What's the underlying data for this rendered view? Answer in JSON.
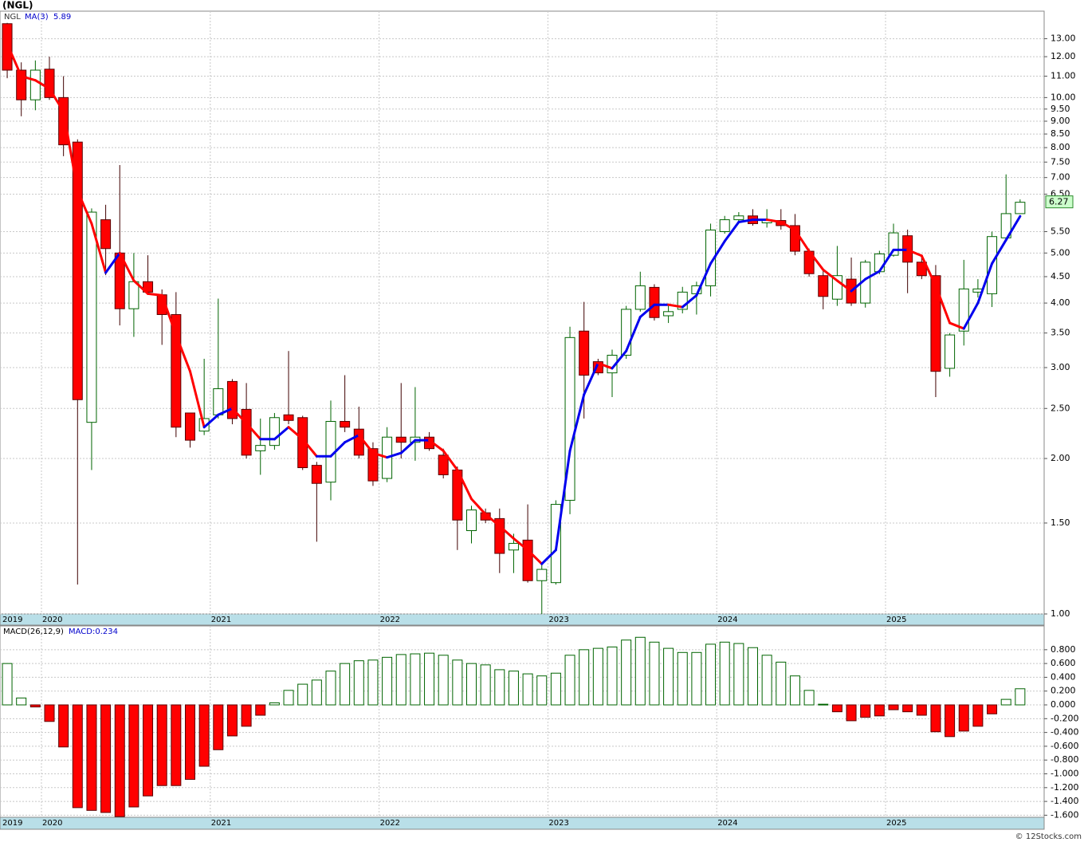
{
  "title": "(NGL)",
  "footer": "© 12Stocks.com",
  "chart_data": [
    {
      "type": "candlestick",
      "symbol": "NGL",
      "log_scale": true,
      "grid": true,
      "up_color": "#006400",
      "down_color": "#ff0000",
      "categories": [
        "2019",
        null,
        null,
        "2020",
        null,
        null,
        null,
        null,
        null,
        null,
        null,
        null,
        null,
        null,
        null,
        "2021",
        null,
        null,
        null,
        null,
        null,
        null,
        null,
        null,
        null,
        null,
        null,
        "2022",
        null,
        null,
        null,
        null,
        null,
        null,
        null,
        null,
        null,
        null,
        null,
        "2023",
        null,
        null,
        null,
        null,
        null,
        null,
        null,
        null,
        null,
        null,
        null,
        "2024",
        null,
        null,
        null,
        null,
        null,
        null,
        null,
        null,
        null,
        null,
        null,
        "2025",
        null,
        null,
        null,
        null,
        null,
        null,
        null,
        null,
        null
      ],
      "open": [
        13.9,
        11.3,
        9.9,
        11.35,
        10.0,
        8.2,
        2.35,
        5.8,
        5.0,
        3.9,
        4.4,
        4.15,
        3.8,
        2.45,
        2.26,
        2.43,
        2.82,
        2.49,
        2.07,
        2.12,
        2.43,
        2.4,
        1.94,
        1.8,
        2.36,
        2.28,
        2.09,
        1.83,
        2.2,
        2.15,
        2.2,
        2.03,
        1.9,
        1.45,
        1.57,
        1.53,
        1.33,
        1.39,
        1.16,
        1.15,
        1.66,
        3.53,
        3.08,
        2.93,
        3.17,
        3.89,
        4.29,
        3.78,
        3.89,
        4.17,
        4.32,
        5.5,
        5.8,
        5.9,
        5.72,
        5.78,
        5.65,
        5.04,
        4.52,
        4.07,
        4.45,
        4.0,
        4.6,
        4.95,
        5.4,
        4.8,
        4.52,
        2.99,
        3.53,
        4.2,
        4.17,
        5.35,
        5.96
      ],
      "high": [
        13.95,
        11.7,
        11.8,
        12.0,
        11.0,
        8.3,
        6.1,
        6.2,
        7.4,
        5.0,
        4.95,
        4.25,
        4.2,
        2.45,
        3.12,
        4.08,
        2.85,
        2.8,
        2.39,
        2.45,
        3.23,
        2.42,
        1.97,
        2.59,
        2.9,
        2.52,
        2.15,
        2.3,
        2.8,
        2.75,
        2.25,
        2.09,
        1.93,
        1.62,
        1.6,
        1.6,
        1.43,
        1.63,
        1.25,
        1.66,
        3.6,
        4.02,
        3.12,
        3.25,
        3.95,
        4.6,
        4.35,
        3.95,
        4.3,
        4.4,
        5.7,
        5.9,
        6.0,
        6.08,
        6.08,
        6.08,
        5.95,
        5.1,
        4.62,
        5.16,
        4.9,
        4.85,
        5.05,
        5.7,
        5.55,
        4.95,
        4.74,
        3.5,
        4.85,
        4.45,
        5.5,
        7.1,
        6.35
      ],
      "low": [
        10.9,
        9.2,
        9.45,
        9.9,
        7.7,
        1.14,
        1.9,
        4.53,
        3.62,
        3.44,
        4.15,
        3.32,
        2.2,
        2.1,
        2.22,
        2.39,
        2.33,
        2.0,
        1.86,
        2.08,
        2.33,
        1.9,
        1.38,
        1.66,
        2.25,
        2.0,
        1.77,
        1.8,
        2.0,
        1.98,
        2.07,
        1.83,
        1.33,
        1.37,
        1.5,
        1.2,
        1.2,
        1.15,
        1.0,
        1.14,
        1.56,
        2.39,
        2.9,
        2.63,
        3.12,
        3.85,
        3.7,
        3.66,
        3.82,
        3.8,
        4.12,
        5.45,
        5.75,
        5.65,
        5.6,
        5.55,
        4.95,
        4.5,
        3.89,
        3.95,
        3.95,
        3.92,
        4.55,
        4.92,
        4.18,
        4.45,
        2.63,
        2.88,
        3.31,
        4.1,
        3.93,
        5.3,
        5.95
      ],
      "close": [
        11.3,
        9.9,
        11.3,
        10.0,
        8.1,
        2.6,
        6.0,
        5.1,
        3.9,
        4.4,
        4.2,
        3.8,
        2.3,
        2.17,
        2.39,
        2.73,
        2.39,
        2.03,
        2.12,
        2.4,
        2.37,
        1.92,
        1.79,
        2.36,
        2.3,
        2.03,
        1.81,
        2.2,
        2.15,
        2.2,
        2.09,
        1.86,
        1.52,
        1.59,
        1.52,
        1.31,
        1.37,
        1.16,
        1.22,
        1.63,
        3.43,
        2.9,
        2.93,
        3.17,
        3.89,
        4.32,
        3.75,
        3.85,
        4.2,
        4.32,
        5.54,
        5.8,
        5.9,
        5.7,
        5.8,
        5.65,
        5.04,
        4.56,
        4.12,
        4.52,
        4.0,
        4.8,
        4.98,
        5.47,
        4.8,
        4.52,
        2.95,
        3.47,
        4.26,
        4.26,
        5.38,
        5.96,
        6.27
      ],
      "series": [
        {
          "name": "MA(3)",
          "up_color": "#0000ee",
          "down_color": "#ff0000",
          "values": [
            12.7,
            11.0,
            10.8,
            10.4,
            9.4,
            6.6,
            5.7,
            4.58,
            5.0,
            4.42,
            4.17,
            4.14,
            3.47,
            2.95,
            2.3,
            2.43,
            2.5,
            2.34,
            2.18,
            2.18,
            2.3,
            2.18,
            2.02,
            2.02,
            2.15,
            2.22,
            2.05,
            2.01,
            2.05,
            2.17,
            2.17,
            2.07,
            1.9,
            1.67,
            1.56,
            1.48,
            1.4,
            1.33,
            1.25,
            1.33,
            2.07,
            2.66,
            3.06,
            2.99,
            3.23,
            3.76,
            3.97,
            3.97,
            3.93,
            4.14,
            4.77,
            5.27,
            5.74,
            5.8,
            5.8,
            5.74,
            5.54,
            5.04,
            4.64,
            4.42,
            4.22,
            4.45,
            4.61,
            5.07,
            5.07,
            4.94,
            4.32,
            3.66,
            3.57,
            4.0,
            4.77,
            5.3,
            5.89
          ]
        }
      ],
      "ylim": [
        1.0,
        14.7
      ],
      "yticks": [
        {
          "value": 1,
          "label": "1.00"
        },
        {
          "value": 1.5,
          "label": "1.50"
        },
        {
          "value": 2,
          "label": "2.00"
        },
        {
          "value": 2.5,
          "label": "2.50"
        },
        {
          "value": 3,
          "label": "3.00"
        },
        {
          "value": 3.5,
          "label": "3.50"
        },
        {
          "value": 4,
          "label": "4.00"
        },
        {
          "value": 4.5,
          "label": "4.50"
        },
        {
          "value": 5,
          "label": "5.00"
        },
        {
          "value": 5.5,
          "label": "5.50"
        },
        {
          "value": 6.5,
          "label": "6.50"
        },
        {
          "value": 7,
          "label": "7.00"
        },
        {
          "value": 7.5,
          "label": "7.50"
        },
        {
          "value": 8,
          "label": "8.00"
        },
        {
          "value": 8.5,
          "label": "8.50"
        },
        {
          "value": 9,
          "label": "9.00"
        },
        {
          "value": 9.5,
          "label": "9.50"
        },
        {
          "value": 10,
          "label": "10.00"
        },
        {
          "value": 11,
          "label": "11.00"
        },
        {
          "value": 12,
          "label": "12.00"
        },
        {
          "value": 13,
          "label": "13.00"
        }
      ]
    },
    {
      "type": "histogram-bar",
      "title": "MACD(26,12,9)",
      "current_label": "MACD:0.234",
      "grid": true,
      "up_color": "#006400",
      "down_color": "#ff0000",
      "values": [
        0.6,
        0.1,
        -0.03,
        -0.24,
        -0.61,
        -1.49,
        -1.53,
        -1.56,
        -1.62,
        -1.48,
        -1.32,
        -1.17,
        -1.17,
        -1.08,
        -0.89,
        -0.65,
        -0.45,
        -0.31,
        -0.15,
        0.03,
        0.21,
        0.3,
        0.36,
        0.49,
        0.6,
        0.64,
        0.65,
        0.69,
        0.73,
        0.74,
        0.75,
        0.72,
        0.65,
        0.6,
        0.58,
        0.51,
        0.49,
        0.45,
        0.42,
        0.46,
        0.72,
        0.8,
        0.82,
        0.84,
        0.94,
        0.98,
        0.91,
        0.82,
        0.76,
        0.76,
        0.88,
        0.91,
        0.89,
        0.83,
        0.72,
        0.62,
        0.42,
        0.21,
        0.01,
        -0.1,
        -0.23,
        -0.18,
        -0.16,
        -0.07,
        -0.1,
        -0.15,
        -0.39,
        -0.46,
        -0.38,
        -0.31,
        -0.13,
        0.08,
        0.234
      ],
      "ylim": [
        -1.63,
        1.145
      ],
      "yticks": [
        {
          "value": 0.8,
          "label": "0.800"
        },
        {
          "value": 0.6,
          "label": "0.600"
        },
        {
          "value": 0.4,
          "label": "0.400"
        },
        {
          "value": 0.2,
          "label": "0.200"
        },
        {
          "value": 0,
          "label": "0.000"
        },
        {
          "value": -0.2,
          "label": "-0.200"
        },
        {
          "value": -0.4,
          "label": "-0.400"
        },
        {
          "value": -0.6,
          "label": "-0.600"
        },
        {
          "value": -0.8,
          "label": "-0.800"
        },
        {
          "value": -1,
          "label": "-1.000"
        },
        {
          "value": -1.2,
          "label": "-1.200"
        },
        {
          "value": -1.4,
          "label": "-1.400"
        },
        {
          "value": -1.6,
          "label": "-1.600"
        }
      ]
    }
  ]
}
